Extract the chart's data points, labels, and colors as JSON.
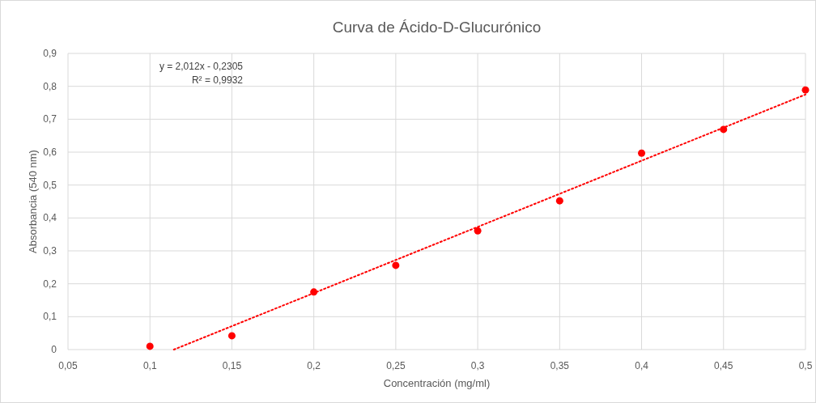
{
  "chart_data": {
    "type": "scatter",
    "title": "Curva de Ácido-D-Glucurónico",
    "xlabel": "Concentración (mg/ml)",
    "ylabel": "Absorbancia (540 nm)",
    "annotations": [
      "y = 2,012x - 0,2305",
      "R² = 0,9932"
    ],
    "xlim": [
      0.05,
      0.5
    ],
    "ylim": [
      0,
      0.9
    ],
    "xticks": [
      {
        "value": 0.05,
        "label": "0,05"
      },
      {
        "value": 0.1,
        "label": "0,1"
      },
      {
        "value": 0.15,
        "label": "0,15"
      },
      {
        "value": 0.2,
        "label": "0,2"
      },
      {
        "value": 0.25,
        "label": "0,25"
      },
      {
        "value": 0.3,
        "label": "0,3"
      },
      {
        "value": 0.35,
        "label": "0,35"
      },
      {
        "value": 0.4,
        "label": "0,4"
      },
      {
        "value": 0.45,
        "label": "0,45"
      },
      {
        "value": 0.5,
        "label": "0,5"
      }
    ],
    "yticks": [
      0,
      {
        "value": 0.1,
        "label": "0,1"
      },
      {
        "value": 0.2,
        "label": "0,2"
      },
      {
        "value": 0.3,
        "label": "0,3"
      },
      {
        "value": 0.4,
        "label": "0,4"
      },
      {
        "value": 0.5,
        "label": "0,5"
      },
      {
        "value": 0.6,
        "label": "0,6"
      },
      {
        "value": 0.7,
        "label": "0,7"
      },
      {
        "value": 0.8,
        "label": "0,8"
      },
      {
        "value": 0.9,
        "label": "0,9"
      }
    ],
    "grid": true,
    "series": [
      {
        "color": "#ff0000",
        "marker": "circle",
        "x": [
          0.1,
          0.15,
          0.2,
          0.25,
          0.3,
          0.35,
          0.4,
          0.45,
          0.5
        ],
        "values": [
          0.01,
          0.042,
          0.175,
          0.256,
          0.361,
          0.452,
          0.597,
          0.669,
          0.789
        ]
      },
      {
        "type": "line",
        "color": "#ff0000",
        "line_style": "dotted",
        "x": [
          0.1146,
          0.5
        ],
        "values": [
          0,
          0.775
        ]
      }
    ]
  }
}
